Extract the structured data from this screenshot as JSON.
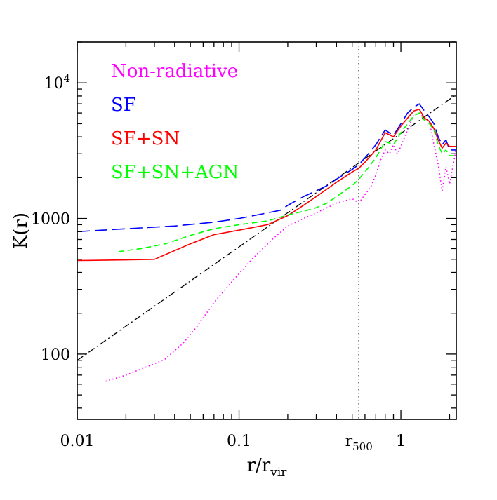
{
  "chart_data": {
    "type": "line",
    "xlabel": "r/r",
    "xlabel_sub": "vir",
    "ylabel": "K(r)",
    "x_scale": "log",
    "y_scale": "log",
    "xlim": [
      0.01,
      2.2
    ],
    "ylim": [
      33,
      20000
    ],
    "x_ticks": [
      {
        "value": 0.01,
        "label": "0.01"
      },
      {
        "value": 0.1,
        "label": "0.1"
      },
      {
        "value": 1,
        "label": "1"
      }
    ],
    "y_ticks": [
      {
        "value": 100,
        "label": "100"
      },
      {
        "value": 1000,
        "label": "1000"
      },
      {
        "value": 10000,
        "label": "10",
        "sup": "4"
      }
    ],
    "annotations": [
      {
        "type": "vline",
        "x": 0.55,
        "style": "dotted",
        "color": "#000000",
        "label": "r",
        "label_sub": "500"
      }
    ],
    "reference_line": {
      "style": "dashdot",
      "color": "#000000",
      "x": [
        0.01,
        2.2
      ],
      "y": [
        90,
        8200
      ]
    },
    "legend_position": "top-left",
    "series": [
      {
        "name": "Non-radiative",
        "color": "#ff00ff",
        "dash": "dotted",
        "x": [
          0.015,
          0.02,
          0.03,
          0.035,
          0.045,
          0.055,
          0.07,
          0.09,
          0.12,
          0.16,
          0.2,
          0.25,
          0.3,
          0.35,
          0.4,
          0.45,
          0.5,
          0.55,
          0.6,
          0.65,
          0.7,
          0.75,
          0.8,
          0.85,
          0.9,
          0.95,
          1.0,
          1.1,
          1.2,
          1.3,
          1.4,
          1.5,
          1.6,
          1.7,
          1.8,
          1.9,
          2.0,
          2.2
        ],
        "y": [
          63,
          70,
          85,
          92,
          120,
          160,
          240,
          340,
          500,
          700,
          880,
          1000,
          1100,
          1200,
          1300,
          1350,
          1400,
          1300,
          1500,
          1700,
          2100,
          2700,
          3200,
          3000,
          3500,
          3000,
          3400,
          4500,
          5800,
          6000,
          5600,
          5200,
          3500,
          2500,
          1600,
          2400,
          1800,
          3300
        ]
      },
      {
        "name": "SF",
        "color": "#0000ff",
        "dash": "longdash",
        "x": [
          0.01,
          0.02,
          0.04,
          0.07,
          0.1,
          0.15,
          0.18,
          0.2,
          0.25,
          0.3,
          0.35,
          0.4,
          0.5,
          0.55,
          0.6,
          0.7,
          0.8,
          0.9,
          1.0,
          1.1,
          1.2,
          1.3,
          1.4,
          1.5,
          1.6,
          1.7,
          1.8,
          1.9,
          2.0,
          2.2
        ],
        "y": [
          800,
          840,
          880,
          940,
          1000,
          1100,
          1150,
          1250,
          1450,
          1600,
          1750,
          1950,
          2300,
          2500,
          2800,
          3500,
          4500,
          4100,
          5000,
          6000,
          6600,
          7000,
          6200,
          5600,
          5000,
          4000,
          3500,
          3800,
          3200,
          3200
        ]
      },
      {
        "name": "SF+SN",
        "color": "#ff0000",
        "dash": "solid",
        "x": [
          0.01,
          0.02,
          0.03,
          0.05,
          0.07,
          0.1,
          0.15,
          0.2,
          0.25,
          0.3,
          0.35,
          0.4,
          0.5,
          0.55,
          0.6,
          0.7,
          0.8,
          0.9,
          1.0,
          1.1,
          1.2,
          1.3,
          1.4,
          1.5,
          1.6,
          1.7,
          1.8,
          1.9,
          2.0,
          2.2
        ],
        "y": [
          490,
          495,
          500,
          650,
          760,
          820,
          900,
          1050,
          1250,
          1450,
          1650,
          1850,
          2200,
          2350,
          2600,
          3200,
          4300,
          4000,
          4800,
          5500,
          6200,
          6400,
          5500,
          5200,
          4600,
          3800,
          3300,
          3600,
          3400,
          3400
        ]
      },
      {
        "name": "SF+SN+AGN",
        "color": "#00ff00",
        "dash": "shortdash",
        "x": [
          0.018,
          0.025,
          0.035,
          0.05,
          0.07,
          0.1,
          0.15,
          0.2,
          0.25,
          0.3,
          0.35,
          0.4,
          0.5,
          0.55,
          0.6,
          0.7,
          0.8,
          0.9,
          1.0,
          1.1,
          1.2,
          1.3,
          1.4,
          1.5,
          1.6,
          1.7,
          1.8,
          1.9,
          2.0,
          2.2
        ],
        "y": [
          570,
          600,
          650,
          750,
          840,
          900,
          960,
          1060,
          1130,
          1200,
          1300,
          1450,
          1750,
          1950,
          2200,
          2800,
          3700,
          3500,
          4300,
          5000,
          5700,
          6000,
          5300,
          5000,
          4500,
          3500,
          3000,
          3200,
          2900,
          2900
        ]
      }
    ]
  }
}
